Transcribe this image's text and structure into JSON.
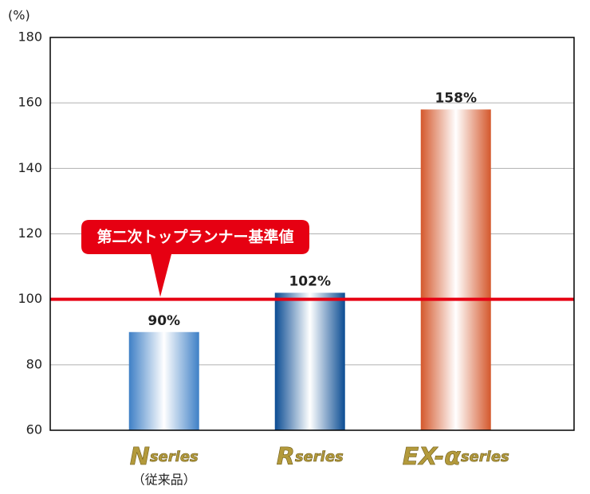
{
  "chart_data": {
    "type": "bar",
    "y_unit": "(%)",
    "categories": [
      "N",
      "R",
      "EX-α"
    ],
    "category_suffix": "series",
    "category_notes": [
      "（従来品）",
      null,
      null
    ],
    "values": [
      90,
      102,
      158
    ],
    "value_labels": [
      "90%",
      "102%",
      "158%"
    ],
    "colors": [
      "#3f80c6",
      "#0b4c93",
      "#d4582c"
    ],
    "ylim": [
      60,
      180
    ],
    "yticks": [
      60,
      80,
      100,
      120,
      140,
      160,
      180
    ],
    "grid": true,
    "reference": {
      "value": 100,
      "label": "第二次トップランナー基準値",
      "color": "#e60012"
    }
  }
}
